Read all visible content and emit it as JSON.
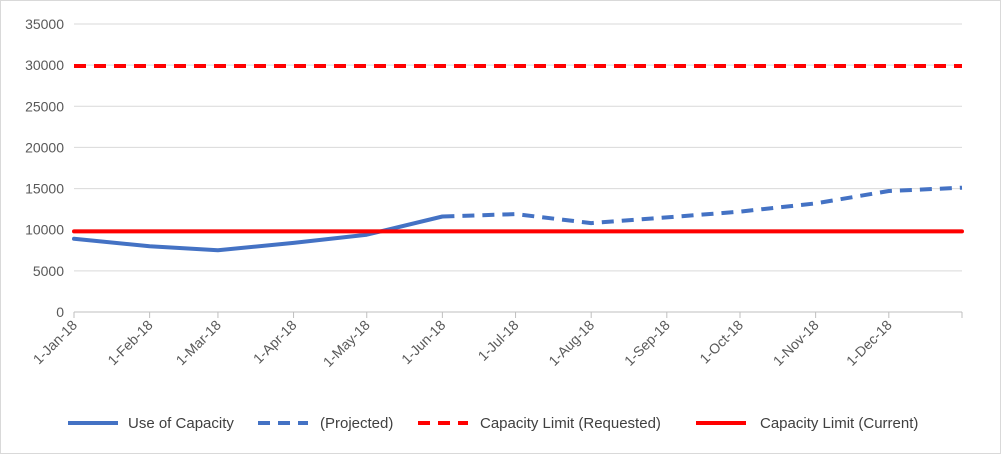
{
  "chart_data": {
    "type": "line",
    "title": "",
    "xlabel": "",
    "ylabel": "",
    "ylim": [
      0,
      35000
    ],
    "yticks": [
      0,
      5000,
      10000,
      15000,
      20000,
      25000,
      30000,
      35000
    ],
    "categories": [
      "1-Jan-18",
      "1-Feb-18",
      "1-Mar-18",
      "1-Apr-18",
      "1-May-18",
      "1-Jun-18",
      "1-Jul-18",
      "1-Aug-18",
      "1-Sep-18",
      "1-Oct-18",
      "1-Nov-18",
      "1-Dec-18"
    ],
    "grid": "horizontal",
    "legend_position": "bottom",
    "series": [
      {
        "name": "Use of Capacity",
        "color": "#4472C4",
        "dash": "solid",
        "x": [
          "1-Jan-18",
          "1-Feb-18",
          "1-Mar-18",
          "1-Apr-18",
          "1-May-18",
          "1-Jun-18"
        ],
        "values": [
          8900,
          8000,
          7500,
          8400,
          9400,
          11600
        ]
      },
      {
        "name": "(Projected)",
        "color": "#4472C4",
        "dash": "dashed",
        "x": [
          "1-Jun-18",
          "1-Jul-18",
          "1-Aug-18",
          "1-Sep-18",
          "1-Oct-18",
          "1-Nov-18",
          "1-Dec-18",
          "31-Dec-18"
        ],
        "values": [
          11600,
          11900,
          10800,
          11500,
          12200,
          13200,
          14700,
          15100
        ]
      },
      {
        "name": "Capacity Limit (Requested)",
        "color": "#FF0000",
        "dash": "dashed",
        "x": [
          "1-Jan-18",
          "31-Dec-18"
        ],
        "values": [
          29900,
          29900
        ]
      },
      {
        "name": "Capacity Limit (Current)",
        "color": "#FF0000",
        "dash": "solid",
        "x": [
          "1-Jan-18",
          "31-Dec-18"
        ],
        "values": [
          9800,
          9800
        ]
      }
    ]
  }
}
